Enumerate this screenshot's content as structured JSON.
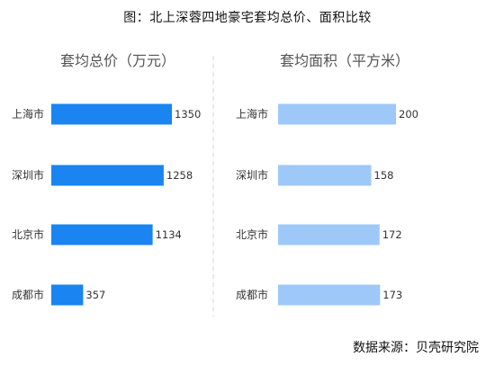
{
  "figure": {
    "caption": "图：北上深蓉四地豪宅套均总价、面积比较",
    "source": "数据来源：贝壳研究院"
  },
  "chart_data": [
    {
      "type": "bar",
      "orientation": "horizontal",
      "title": "套均总价（万元）",
      "categories": [
        "上海市",
        "深圳市",
        "北京市",
        "成都市"
      ],
      "values": [
        1350,
        1258,
        1134,
        357
      ],
      "xlim": [
        0,
        1350
      ],
      "color": "#1a84f0",
      "grid": false
    },
    {
      "type": "bar",
      "orientation": "horizontal",
      "title": "套均面积（平方米）",
      "categories": [
        "上海市",
        "深圳市",
        "北京市",
        "成都市"
      ],
      "values": [
        200,
        158,
        172,
        173
      ],
      "xlim": [
        0,
        200
      ],
      "color": "#9ec8f8",
      "grid": false
    }
  ]
}
